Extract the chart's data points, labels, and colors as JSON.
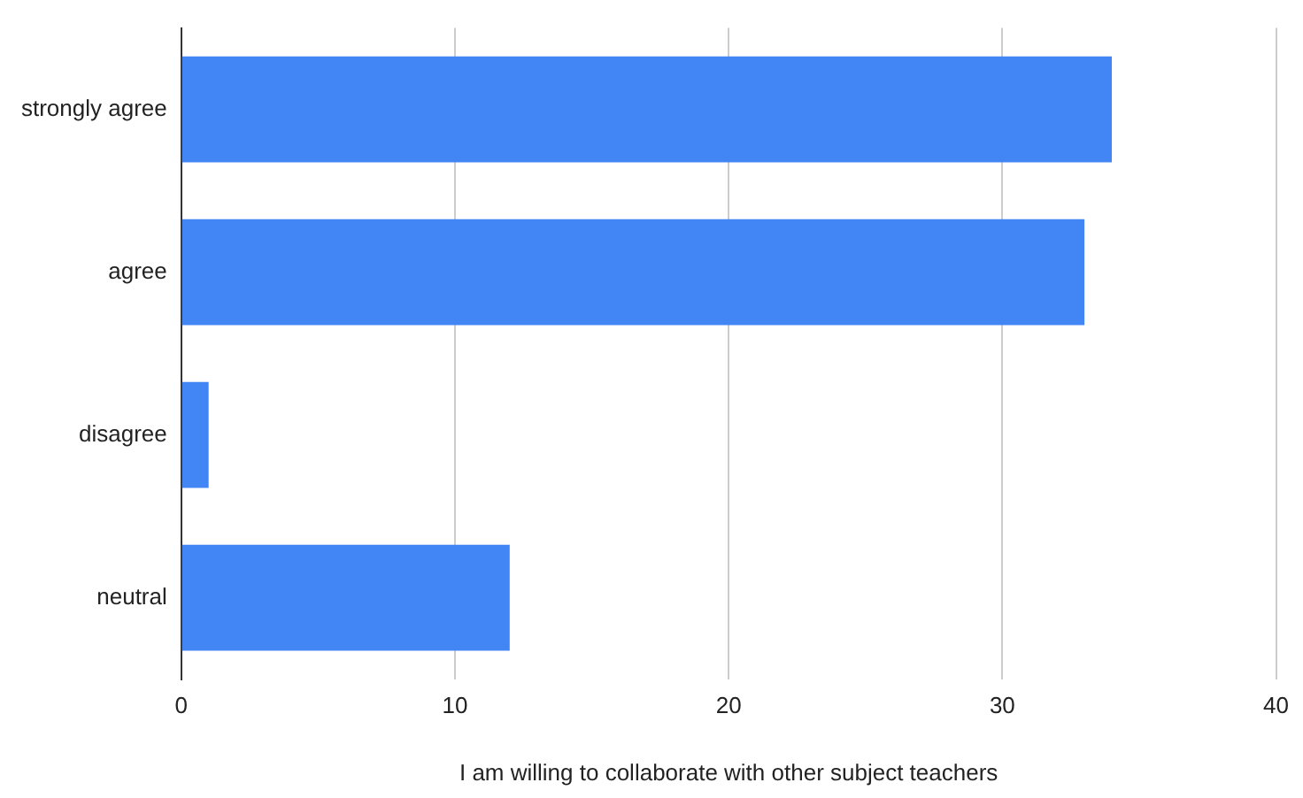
{
  "chart_data": {
    "type": "bar",
    "orientation": "horizontal",
    "xlabel": "I am willing to collaborate with other subject teachers",
    "categories": [
      "strongly agree",
      "agree",
      "disagree",
      "neutral"
    ],
    "values": [
      34,
      33,
      1,
      12
    ],
    "color": "#4285f4",
    "xlim": [
      0,
      40
    ],
    "xticks": [
      0,
      10,
      20,
      30,
      40
    ],
    "grid": "x",
    "legend": false
  }
}
